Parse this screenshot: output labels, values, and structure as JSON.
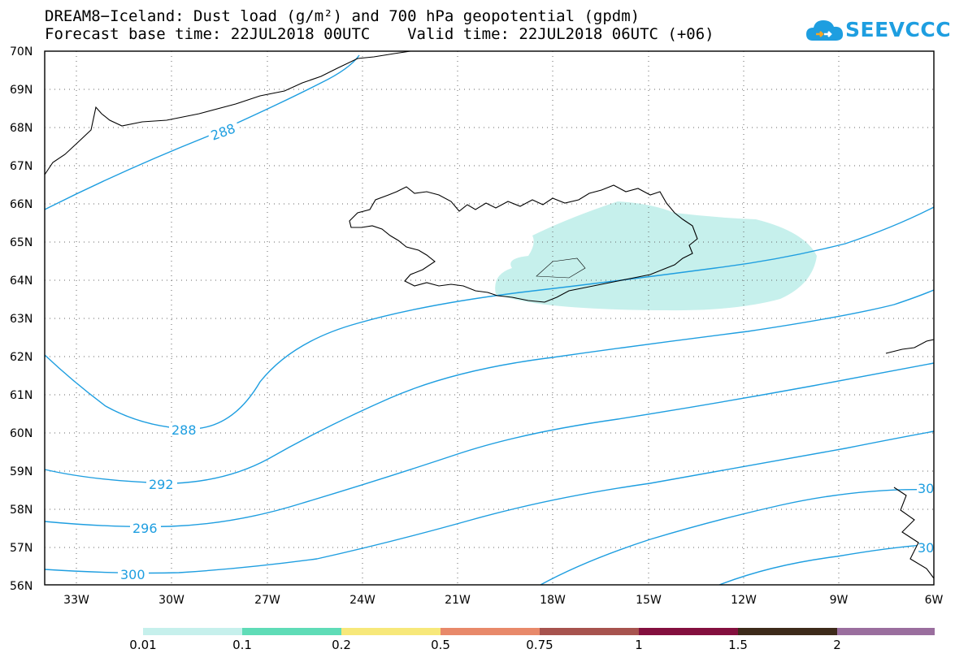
{
  "header": {
    "title_line1": "DREAM8−Iceland: Dust load (g/m²) and 700 hPa geopotential (gpdm)",
    "title_line2": "Forecast base time: 22JUL2018 00UTC    Valid time: 22JUL2018 06UTC (+06)",
    "logo_text": "SEEVCCC",
    "logo_icon": "cloud-logo-icon"
  },
  "map": {
    "lon_labels": [
      "33W",
      "30W",
      "27W",
      "24W",
      "21W",
      "18W",
      "15W",
      "12W",
      "9W",
      "6W"
    ],
    "lat_labels": [
      "70N",
      "69N",
      "68N",
      "67N",
      "66N",
      "65N",
      "64N",
      "63N",
      "62N",
      "61N",
      "60N",
      "59N",
      "58N",
      "57N",
      "56N"
    ],
    "contour_labels": [
      "288",
      "288",
      "292",
      "296",
      "300",
      "30",
      "30"
    ],
    "colors": {
      "contour": "#1e9ee0",
      "dust_low": "#c6f0ec",
      "coast": "#000000",
      "grid": "#666666"
    }
  },
  "colorbar": {
    "colors": [
      "#c6f0ec",
      "#5fdcb7",
      "#f7e87a",
      "#e8896a",
      "#a7534e",
      "#830f3e",
      "#3d2a1a",
      "#9a6e9e"
    ],
    "labels": [
      "0.01",
      "0.1",
      "0.2",
      "0.5",
      "0.75",
      "1",
      "1.5",
      "2"
    ]
  }
}
